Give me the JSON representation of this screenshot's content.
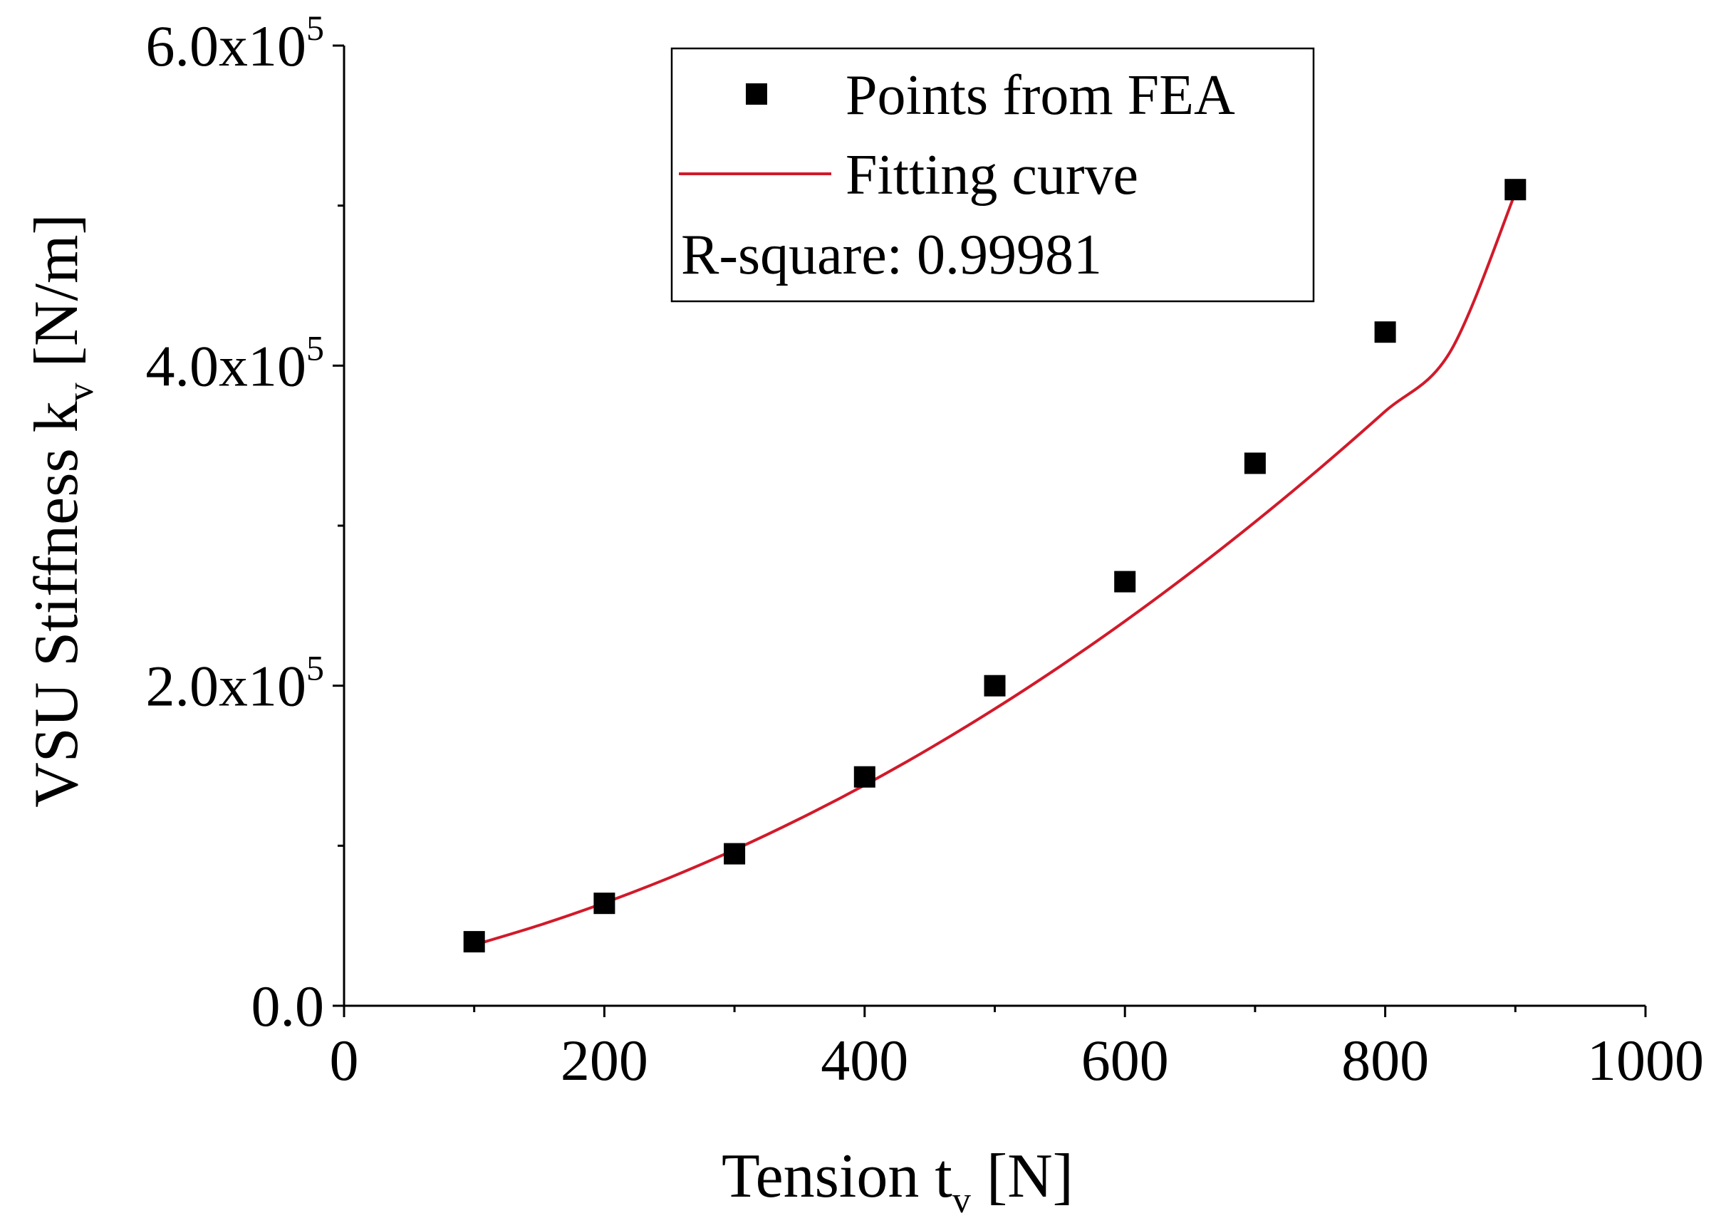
{
  "chart_data": {
    "type": "scatter",
    "x": [
      100,
      200,
      300,
      400,
      500,
      600,
      700,
      800,
      900
    ],
    "series": [
      {
        "name": "Points from FEA",
        "kind": "scatter",
        "marker": "square",
        "color": "#000000",
        "values": [
          40000,
          64000,
          95000,
          143000,
          200000,
          265000,
          339000,
          421000,
          510000
        ]
      },
      {
        "name": "Fitting curve",
        "kind": "line",
        "color": "#d11a2a",
        "x": [
          100,
          150,
          200,
          250,
          300,
          350,
          400,
          450,
          500,
          550,
          600,
          650,
          700,
          750,
          800,
          850,
          900
        ],
        "values": [
          38000,
          50300,
          64300,
          80000,
          97500,
          116800,
          137900,
          160800,
          185500,
          212000,
          240300,
          270400,
          302300,
          336000,
          371500,
          408800,
          508000
        ]
      }
    ],
    "annotation": "R-square: 0.99981",
    "xlabel": {
      "main": "Tension t",
      "sub": "v",
      "unit": "[N]"
    },
    "ylabel": {
      "main": "VSU Stiffness k",
      "sub": "v",
      "unit": "[N/m]"
    },
    "xlim": [
      0,
      1000
    ],
    "ylim": [
      0,
      600000
    ],
    "xticks": [
      0,
      200,
      400,
      600,
      800,
      1000
    ],
    "xtick_labels": [
      "0",
      "200",
      "400",
      "600",
      "800",
      "1000"
    ],
    "yticks": [
      0,
      200000,
      400000,
      600000
    ],
    "ytick_labels": [
      {
        "base": "0.0",
        "exp": ""
      },
      {
        "base": "2.0x10",
        "exp": "5"
      },
      {
        "base": "4.0x10",
        "exp": "5"
      },
      {
        "base": "6.0x10",
        "exp": "5"
      }
    ],
    "legend": {
      "placement": "top-center",
      "entries": [
        "Points from FEA",
        "Fitting curve",
        "R-square: 0.99981"
      ]
    },
    "grid": false
  }
}
